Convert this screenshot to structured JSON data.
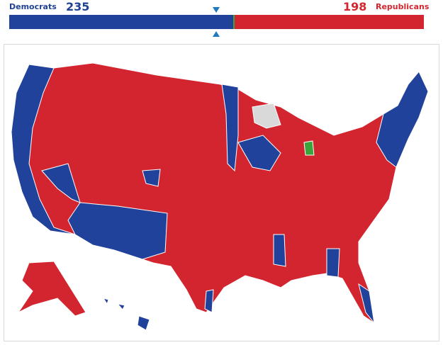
{
  "seat_bar": {
    "democrats": {
      "label": "Democrats",
      "seats": 235
    },
    "republicans": {
      "label": "Republicans",
      "seats": 198
    }
  }
}
